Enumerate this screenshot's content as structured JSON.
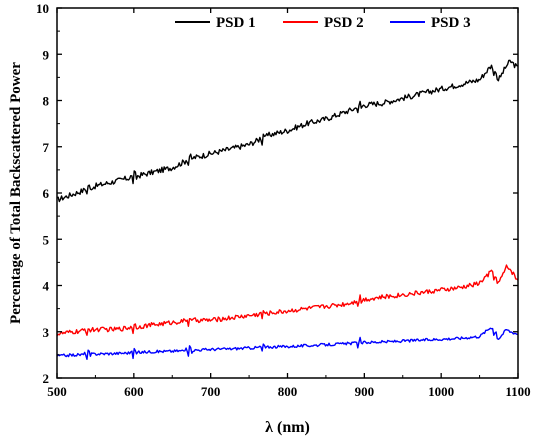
{
  "chart_data": {
    "type": "line",
    "title": "",
    "xlabel": "λ (nm)",
    "ylabel": "Percentage of Total Backscattered Power",
    "xlim": [
      500,
      1100
    ],
    "ylim": [
      2,
      10
    ],
    "x_ticks": [
      500,
      600,
      700,
      800,
      900,
      1000,
      1100
    ],
    "y_ticks": [
      2,
      3,
      4,
      5,
      6,
      7,
      8,
      9,
      10
    ],
    "x_tick_labels": [
      "500",
      "600",
      "700",
      "800",
      "900",
      "1000",
      "1100"
    ],
    "y_tick_labels": [
      "2",
      "3",
      "4",
      "5",
      "6",
      "7",
      "8",
      "9",
      "10"
    ],
    "grid": false,
    "legend_position": "top-right",
    "series": [
      {
        "name": "PSD 1",
        "color": "#000000",
        "x": [
          500,
          525,
          550,
          575,
          600,
          625,
          650,
          675,
          700,
          725,
          750,
          775,
          800,
          825,
          850,
          875,
          900,
          925,
          950,
          975,
          1000,
          1025,
          1050,
          1065,
          1075,
          1085,
          1090,
          1100
        ],
        "y": [
          5.85,
          6.0,
          6.15,
          6.25,
          6.35,
          6.45,
          6.55,
          6.75,
          6.85,
          6.95,
          7.05,
          7.25,
          7.35,
          7.5,
          7.6,
          7.75,
          7.9,
          7.95,
          8.05,
          8.15,
          8.25,
          8.35,
          8.45,
          8.75,
          8.45,
          8.75,
          8.85,
          8.7
        ]
      },
      {
        "name": "PSD 2",
        "color": "#ff0000",
        "x": [
          500,
          525,
          550,
          575,
          600,
          625,
          650,
          675,
          700,
          725,
          750,
          775,
          800,
          825,
          850,
          875,
          900,
          925,
          950,
          975,
          1000,
          1025,
          1050,
          1065,
          1075,
          1085,
          1090,
          1100
        ],
        "y": [
          2.95,
          3.0,
          3.05,
          3.05,
          3.1,
          3.15,
          3.2,
          3.25,
          3.25,
          3.3,
          3.35,
          3.4,
          3.45,
          3.5,
          3.55,
          3.6,
          3.7,
          3.75,
          3.8,
          3.85,
          3.9,
          3.95,
          4.05,
          4.3,
          4.05,
          4.4,
          4.35,
          4.1
        ]
      },
      {
        "name": "PSD 3",
        "color": "#0000ff",
        "x": [
          500,
          525,
          550,
          575,
          600,
          625,
          650,
          675,
          700,
          725,
          750,
          775,
          800,
          825,
          850,
          875,
          900,
          925,
          950,
          975,
          1000,
          1025,
          1050,
          1065,
          1075,
          1085,
          1090,
          1100
        ],
        "y": [
          2.48,
          2.5,
          2.52,
          2.53,
          2.55,
          2.57,
          2.58,
          2.6,
          2.62,
          2.63,
          2.65,
          2.67,
          2.68,
          2.7,
          2.72,
          2.74,
          2.77,
          2.78,
          2.8,
          2.82,
          2.84,
          2.86,
          2.9,
          3.1,
          2.85,
          3.05,
          3.0,
          2.95
        ]
      }
    ]
  }
}
